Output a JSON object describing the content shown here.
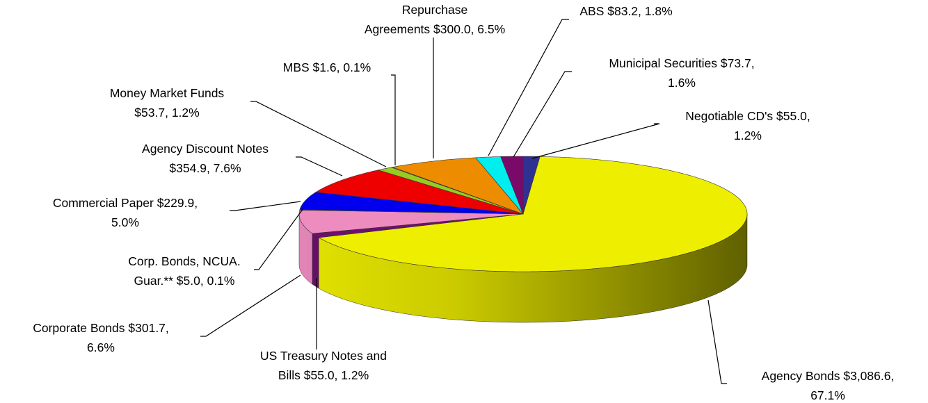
{
  "chart_data": {
    "type": "pie",
    "labels": [
      [
        "Negotiable CD's $55.0,",
        "1.2%"
      ],
      [
        "Agency Bonds $3,086.6,",
        "67.1%"
      ],
      [
        "US Treasury Notes and",
        "Bills $55.0, 1.2%"
      ],
      [
        "Corporate Bonds $301.7,",
        "6.6%"
      ],
      [
        "Corp. Bonds, NCUA.",
        "Guar.** $5.0, 0.1%"
      ],
      [
        "Commercial Paper $229.9,",
        "5.0%"
      ],
      [
        "Agency Discount Notes",
        "$354.9, 7.6%"
      ],
      [
        "Money Market Funds",
        "$53.7, 1.2%"
      ],
      [
        "MBS $1.6, 0.1%"
      ],
      [
        "Repurchase",
        "Agreements $300.0, 6.5%"
      ],
      [
        "ABS $83.2, 1.8%"
      ],
      [
        "Municipal Securities $73.7,",
        "1.6%"
      ]
    ],
    "values": [
      1.2,
      67.1,
      1.2,
      6.6,
      0.1,
      5.0,
      7.6,
      1.2,
      0.1,
      6.5,
      1.8,
      1.6
    ],
    "colors": [
      "#2e3192",
      "#eeee00",
      "#6e0f6e",
      "#ee8cc0",
      "#7a1070",
      "#0000ee",
      "#ee0000",
      "#99cc22",
      "#c8b400",
      "#ee8c00",
      "#00eeee",
      "#7a0a6a"
    ]
  }
}
